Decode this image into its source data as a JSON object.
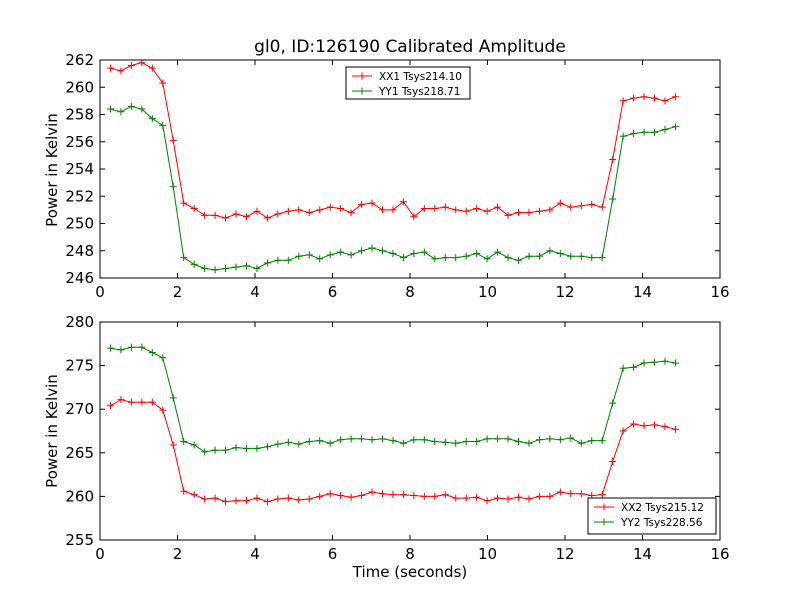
{
  "chart_data": [
    {
      "type": "line",
      "title": "gl0, ID:126190 Calibrated Amplitude",
      "xlabel": "",
      "ylabel": "Power in Kelvin",
      "xlim": [
        0,
        16
      ],
      "ylim": [
        246,
        262
      ],
      "xticks": [
        "0",
        "2",
        "4",
        "6",
        "8",
        "10",
        "12",
        "14",
        "16"
      ],
      "yticks": [
        "246",
        "248",
        "250",
        "252",
        "254",
        "256",
        "258",
        "260",
        "262"
      ],
      "legend_position": "top-center",
      "x": [
        0.27,
        0.54,
        0.81,
        1.08,
        1.35,
        1.62,
        1.89,
        2.16,
        2.43,
        2.7,
        2.97,
        3.24,
        3.51,
        3.78,
        4.05,
        4.32,
        4.59,
        4.86,
        5.13,
        5.4,
        5.67,
        5.94,
        6.21,
        6.48,
        6.75,
        7.02,
        7.29,
        7.56,
        7.83,
        8.1,
        8.37,
        8.64,
        8.91,
        9.18,
        9.45,
        9.72,
        9.99,
        10.26,
        10.53,
        10.8,
        11.07,
        11.34,
        11.61,
        11.88,
        12.15,
        12.42,
        12.69,
        12.96,
        13.23,
        13.5,
        13.77,
        14.04,
        14.31,
        14.58,
        14.85
      ],
      "series": [
        {
          "name": "XX1 Tsys214.10",
          "color": "#ff0000",
          "values": [
            261.4,
            261.2,
            261.6,
            261.8,
            261.4,
            260.3,
            256.1,
            251.5,
            251.1,
            250.6,
            250.6,
            250.4,
            250.7,
            250.5,
            250.9,
            250.4,
            250.7,
            250.9,
            251.0,
            250.8,
            251.0,
            251.2,
            251.1,
            250.8,
            251.4,
            251.5,
            251.0,
            251.0,
            251.6,
            250.5,
            251.1,
            251.1,
            251.2,
            251.0,
            250.9,
            251.1,
            250.9,
            251.2,
            250.6,
            250.8,
            250.8,
            250.9,
            251.0,
            251.5,
            251.2,
            251.3,
            251.4,
            251.2,
            254.7,
            259.0,
            259.2,
            259.3,
            259.2,
            259.0,
            259.3
          ]
        },
        {
          "name": "YY1 Tsys218.71",
          "color": "#008000",
          "values": [
            258.4,
            258.2,
            258.6,
            258.4,
            257.7,
            257.2,
            252.7,
            247.5,
            247.0,
            246.7,
            246.6,
            246.7,
            246.8,
            246.9,
            246.7,
            247.1,
            247.3,
            247.3,
            247.6,
            247.7,
            247.4,
            247.7,
            247.9,
            247.7,
            248.0,
            248.2,
            248.0,
            247.8,
            247.5,
            247.8,
            247.9,
            247.4,
            247.5,
            247.5,
            247.6,
            247.8,
            247.4,
            247.9,
            247.5,
            247.3,
            247.6,
            247.6,
            248.0,
            247.8,
            247.6,
            247.6,
            247.5,
            247.5,
            251.8,
            256.4,
            256.6,
            256.7,
            256.7,
            256.9,
            257.1
          ]
        }
      ]
    },
    {
      "type": "line",
      "title": "",
      "xlabel": "Time (seconds)",
      "ylabel": "Power in Kelvin",
      "xlim": [
        0,
        16
      ],
      "ylim": [
        255,
        280
      ],
      "xticks": [
        "0",
        "2",
        "4",
        "6",
        "8",
        "10",
        "12",
        "14",
        "16"
      ],
      "yticks": [
        "255",
        "260",
        "265",
        "270",
        "275",
        "280"
      ],
      "legend_position": "bottom-right",
      "x": [
        0.27,
        0.54,
        0.81,
        1.08,
        1.35,
        1.62,
        1.89,
        2.16,
        2.43,
        2.7,
        2.97,
        3.24,
        3.51,
        3.78,
        4.05,
        4.32,
        4.59,
        4.86,
        5.13,
        5.4,
        5.67,
        5.94,
        6.21,
        6.48,
        6.75,
        7.02,
        7.29,
        7.56,
        7.83,
        8.1,
        8.37,
        8.64,
        8.91,
        9.18,
        9.45,
        9.72,
        9.99,
        10.26,
        10.53,
        10.8,
        11.07,
        11.34,
        11.61,
        11.88,
        12.15,
        12.42,
        12.69,
        12.96,
        13.23,
        13.5,
        13.77,
        14.04,
        14.31,
        14.58,
        14.85
      ],
      "series": [
        {
          "name": "XX2 Tsys215.12",
          "color": "#ff0000",
          "values": [
            270.4,
            271.1,
            270.8,
            270.8,
            270.8,
            269.9,
            265.9,
            260.6,
            260.2,
            259.7,
            259.8,
            259.4,
            259.5,
            259.5,
            259.8,
            259.4,
            259.7,
            259.8,
            259.6,
            259.7,
            260.0,
            260.3,
            260.1,
            259.9,
            260.1,
            260.5,
            260.3,
            260.2,
            260.2,
            260.1,
            260.0,
            260.0,
            260.2,
            259.8,
            259.8,
            259.9,
            259.5,
            259.8,
            259.7,
            259.9,
            259.7,
            260.0,
            260.0,
            260.5,
            260.3,
            260.3,
            260.1,
            260.2,
            264.0,
            267.5,
            268.3,
            268.1,
            268.2,
            268.0,
            267.7
          ]
        },
        {
          "name": "YY2 Tsys228.56",
          "color": "#008000",
          "values": [
            277.0,
            276.8,
            277.1,
            277.1,
            276.5,
            275.9,
            271.3,
            266.3,
            265.9,
            265.1,
            265.3,
            265.3,
            265.6,
            265.5,
            265.5,
            265.7,
            266.0,
            266.2,
            266.0,
            266.3,
            266.4,
            266.1,
            266.5,
            266.6,
            266.6,
            266.5,
            266.6,
            266.4,
            266.1,
            266.5,
            266.5,
            266.3,
            266.2,
            266.1,
            266.3,
            266.3,
            266.6,
            266.6,
            266.6,
            266.3,
            266.1,
            266.5,
            266.6,
            266.5,
            266.7,
            266.1,
            266.4,
            266.4,
            270.7,
            274.7,
            274.8,
            275.3,
            275.4,
            275.5,
            275.3
          ]
        }
      ]
    }
  ]
}
